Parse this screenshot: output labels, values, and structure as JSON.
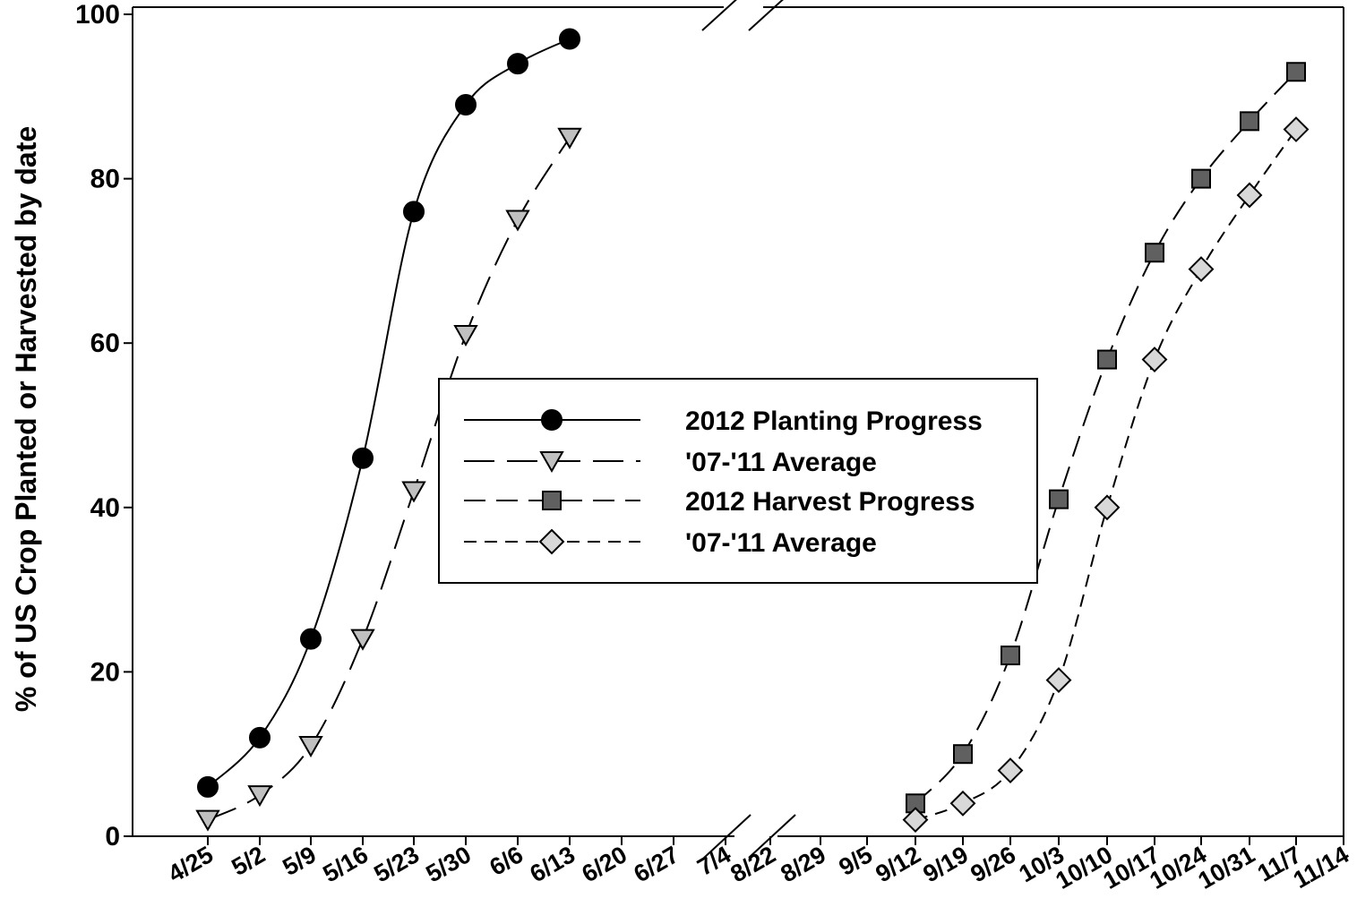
{
  "chart_data": {
    "type": "line",
    "title": "",
    "xlabel": "",
    "ylabel": "% of US Crop Planted or Harvested by date",
    "ylim": [
      0,
      100
    ],
    "yticks": [
      0,
      20,
      40,
      60,
      80,
      100
    ],
    "x_tick_labels": [
      "4/25",
      "5/2",
      "5/9",
      "5/16",
      "5/23",
      "5/30",
      "6/6",
      "6/13",
      "6/20",
      "6/27",
      "7/4",
      "8/22",
      "8/29",
      "9/5",
      "9/12",
      "9/19",
      "9/26",
      "10/3",
      "10/10",
      "10/17",
      "10/24",
      "10/31",
      "11/7",
      "11/14"
    ],
    "axis_break": "between 7/4 and 8/22",
    "grid": false,
    "legend_placement": "center",
    "series": [
      {
        "name": "2012 Planting Progress",
        "line_style": "solid",
        "marker": "circle",
        "color": "#000000",
        "x": [
          "4/25",
          "5/2",
          "5/9",
          "5/16",
          "5/23",
          "5/30",
          "6/6",
          "6/13"
        ],
        "values": [
          6,
          12,
          24,
          46,
          76,
          89,
          94,
          97
        ]
      },
      {
        "name": "'07-'11 Average",
        "line_style": "long-dash",
        "marker": "triangle-down",
        "color": "#c0c0c0",
        "x": [
          "4/25",
          "5/2",
          "5/9",
          "5/16",
          "5/23",
          "5/30",
          "6/6",
          "6/13"
        ],
        "values": [
          2,
          5,
          11,
          24,
          42,
          61,
          75,
          85
        ]
      },
      {
        "name": "2012 Harvest Progress",
        "line_style": "dash",
        "marker": "square",
        "color": "#606060",
        "x": [
          "9/12",
          "9/19",
          "9/26",
          "10/3",
          "10/10",
          "10/17",
          "10/24",
          "10/31",
          "11/7"
        ],
        "values": [
          4,
          10,
          22,
          41,
          58,
          71,
          80,
          87,
          93
        ]
      },
      {
        "name": "'07-'11 Average",
        "line_style": "short-dash",
        "marker": "diamond",
        "color": "#d8d8d8",
        "x": [
          "9/12",
          "9/19",
          "9/26",
          "10/3",
          "10/10",
          "10/17",
          "10/24",
          "10/31",
          "11/7"
        ],
        "values": [
          2,
          4,
          8,
          19,
          40,
          58,
          69,
          78,
          86
        ]
      }
    ]
  }
}
